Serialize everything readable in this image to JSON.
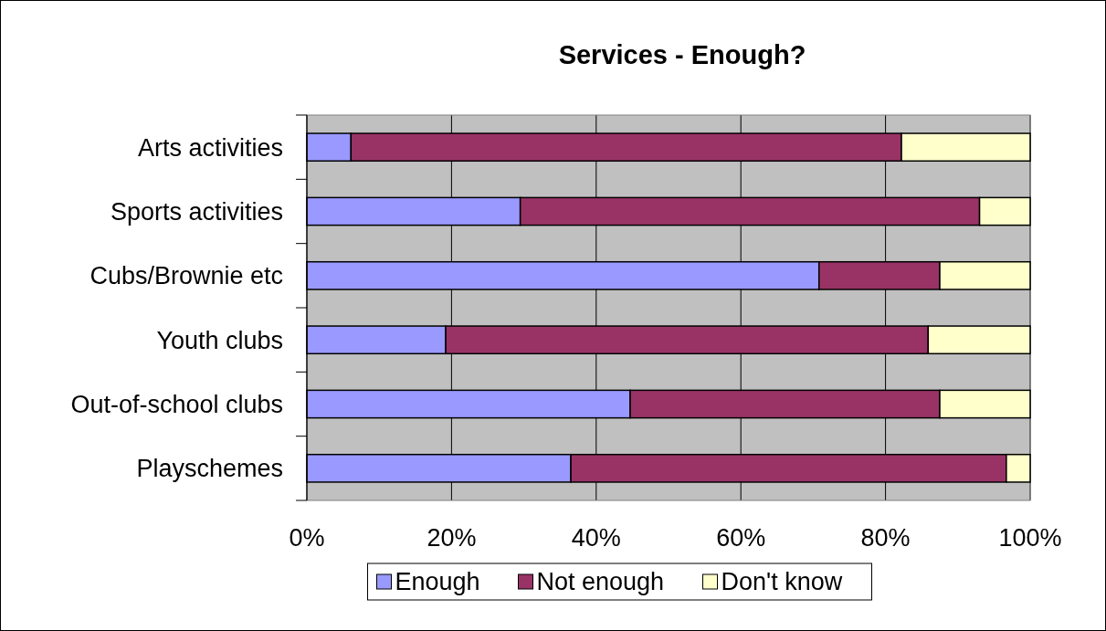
{
  "chart_data": {
    "type": "bar",
    "title": "Services - Enough?",
    "orientation": "horizontal",
    "stacked": true,
    "categories": [
      "Arts activities",
      "Sports activities",
      "Cubs/Brownie etc",
      "Youth clubs",
      "Out-of-school clubs",
      "Playschemes"
    ],
    "series": [
      {
        "name": "Enough",
        "color": "#9999ff",
        "values": [
          6.1,
          29.5,
          70.8,
          19.2,
          44.7,
          36.5
        ]
      },
      {
        "name": "Not enough",
        "color": "#993366",
        "values": [
          76.1,
          63.5,
          16.7,
          66.7,
          42.8,
          60.2
        ]
      },
      {
        "name": "Don't know",
        "color": "#ffffcc",
        "values": [
          17.8,
          7.0,
          12.5,
          14.1,
          12.5,
          3.3
        ]
      }
    ],
    "xlim": [
      0,
      100
    ],
    "xticks": [
      {
        "value": 0,
        "label": "0%"
      },
      {
        "value": 20,
        "label": "20%"
      },
      {
        "value": 40,
        "label": "40%"
      },
      {
        "value": 60,
        "label": "60%"
      },
      {
        "value": 80,
        "label": "80%"
      },
      {
        "value": 100,
        "label": "100%"
      }
    ],
    "grid": "x",
    "legend": "bottom"
  }
}
